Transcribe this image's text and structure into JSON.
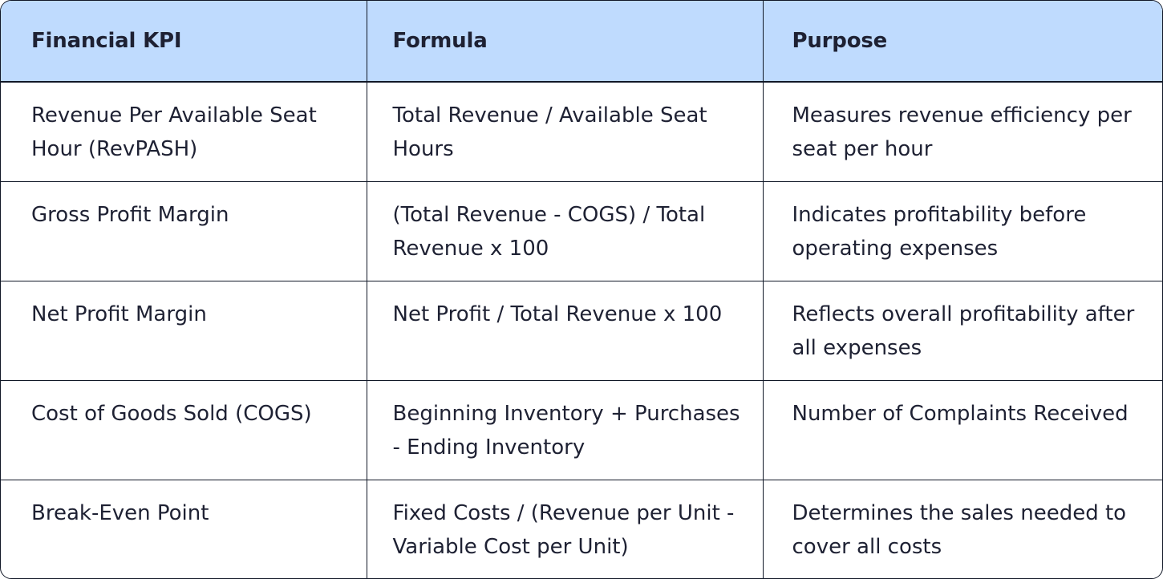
{
  "table": {
    "headers": [
      "Financial KPI",
      "Formula",
      "Purpose"
    ],
    "rows": [
      {
        "kpi": "Revenue Per Available Seat Hour (RevPASH)",
        "formula": "Total Revenue / Available Seat Hours",
        "purpose": "Measures revenue efficiency per seat per hour"
      },
      {
        "kpi": "Gross Profit Margin",
        "formula": "(Total Revenue - COGS) / Total Revenue x 100",
        "purpose": "Indicates profitability before operating expenses"
      },
      {
        "kpi": "Net Profit Margin",
        "formula": "Net Profit / Total Revenue x 100",
        "purpose": "Reflects overall profitability after all expenses"
      },
      {
        "kpi": "Cost of Goods Sold (COGS)",
        "formula": "Beginning Inventory + Purchases - Ending Inventory",
        "purpose": "Number of Complaints Received"
      },
      {
        "kpi": "Break-Even Point",
        "formula": "Fixed Costs / (Revenue per Unit - Variable Cost per Unit)",
        "purpose": "Determines the sales needed to cover all costs"
      }
    ]
  },
  "colors": {
    "header_background": "#bfdbfe",
    "border": "#111827",
    "text": "#1e2133"
  }
}
